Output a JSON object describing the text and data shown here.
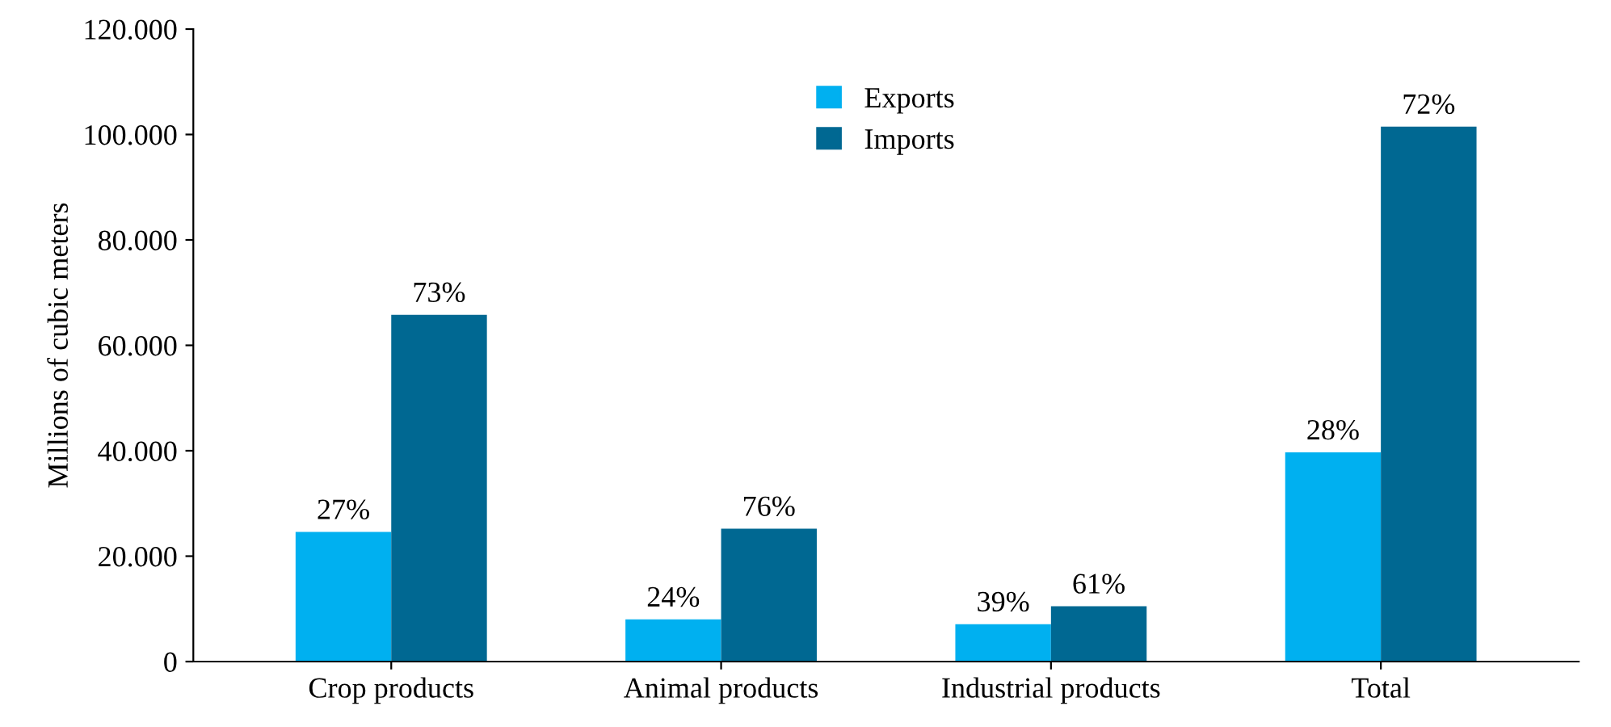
{
  "chart_data": {
    "type": "bar",
    "ylabel": "Millions of cubic meters",
    "categories": [
      "Crop products",
      "Animal products",
      "Industrial products",
      "Total"
    ],
    "series": [
      {
        "name": "Exports",
        "color": "#00b0f0",
        "values": [
          24600,
          8000,
          7100,
          39700
        ]
      },
      {
        "name": "Imports",
        "color": "#006892",
        "values": [
          65800,
          25200,
          10500,
          101500
        ]
      }
    ],
    "annotations": [
      {
        "text": "27%",
        "x": "Crop products",
        "y": 24600
      },
      {
        "text": "73%",
        "x": "Crop products",
        "y": 65800
      },
      {
        "text": "24%",
        "x": "Animal products",
        "y": 8000
      },
      {
        "text": "76%",
        "x": "Animal products",
        "y": 25200
      },
      {
        "text": "39%",
        "x": "Industrial products",
        "y": 7100
      },
      {
        "text": "61%",
        "x": "Industrial products",
        "y": 10500
      },
      {
        "text": "28%",
        "x": "Total",
        "y": 39700
      },
      {
        "text": "72%",
        "x": "Total",
        "y": 101500
      }
    ],
    "ylim": [
      0,
      120000
    ],
    "yticks": [
      {
        "value": 0,
        "label": "0"
      },
      {
        "value": 20000,
        "label": "20.000"
      },
      {
        "value": 40000,
        "label": "40.000"
      },
      {
        "value": 60000,
        "label": "60.000"
      },
      {
        "value": 80000,
        "label": "80.000"
      },
      {
        "value": 100000,
        "label": "100.000"
      },
      {
        "value": 120000,
        "label": "120.000"
      }
    ],
    "grid": false,
    "legend": "top"
  }
}
